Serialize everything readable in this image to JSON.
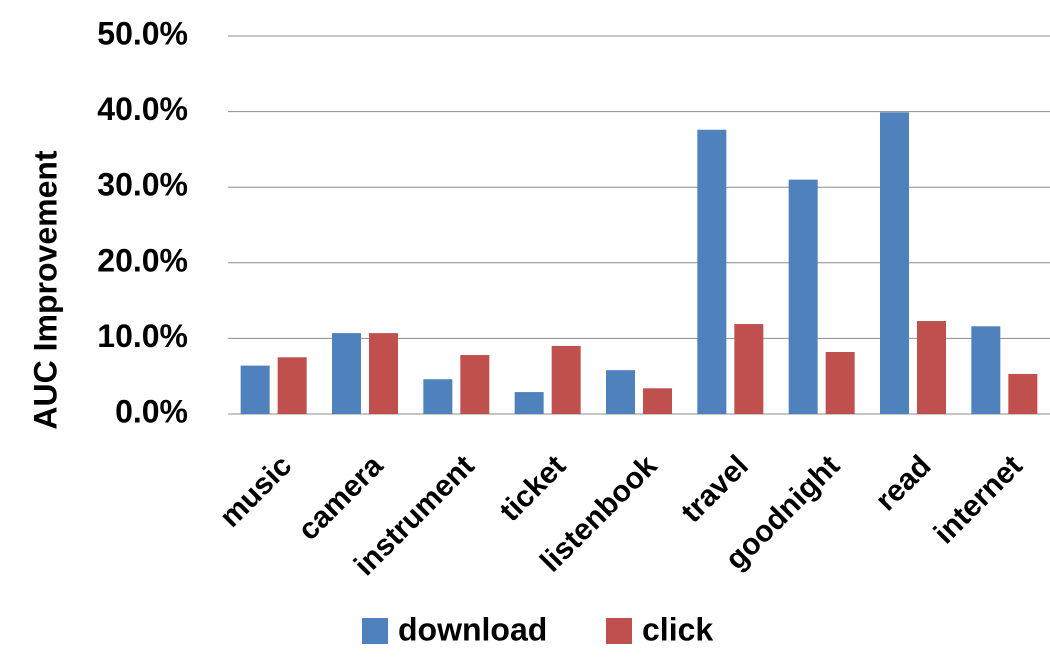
{
  "chart_data": {
    "type": "bar",
    "y_label": "AUC Improvement",
    "categories": [
      "music",
      "camera",
      "instrument",
      "ticket",
      "listenbook",
      "travel",
      "goodnight",
      "read",
      "internet"
    ],
    "series": [
      {
        "name": "download",
        "color": "#4f81bd",
        "values": [
          6.4,
          10.7,
          4.6,
          2.9,
          5.8,
          37.6,
          31.0,
          39.9,
          11.6
        ]
      },
      {
        "name": "click",
        "color": "#c0504d",
        "values": [
          7.5,
          10.7,
          7.8,
          9.0,
          3.4,
          11.9,
          8.2,
          12.3,
          5.3
        ]
      }
    ],
    "ylim": [
      0,
      50
    ],
    "yticks": [
      {
        "value": 0,
        "label": "0.0%"
      },
      {
        "value": 10,
        "label": "10.0%"
      },
      {
        "value": 20,
        "label": "20.0%"
      },
      {
        "value": 30,
        "label": "30.0%"
      },
      {
        "value": 40,
        "label": "40.0%"
      },
      {
        "value": 50,
        "label": "50.0%"
      }
    ],
    "grid": true,
    "legend": "bottom"
  }
}
